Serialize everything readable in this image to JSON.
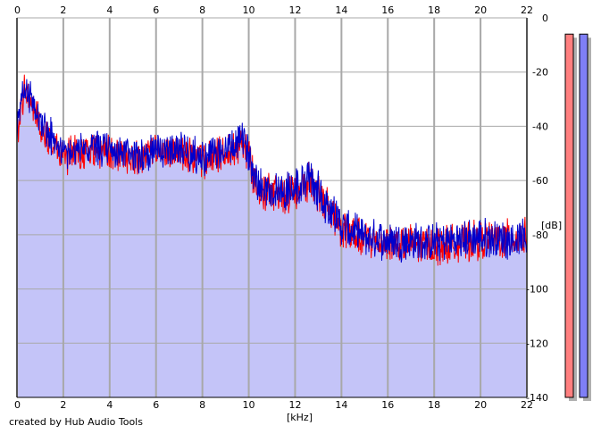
{
  "app": {
    "credit": "created by Hub Audio Tools"
  },
  "colors": {
    "background": "#ffffff",
    "fill": "#c4c4f8",
    "grid": "#a8a8a8",
    "channel_left": "#ff0000",
    "channel_right": "#0000cc",
    "meter_left_fill": "#ff7f7f",
    "meter_right_fill": "#7f7ff7",
    "meter_shadow": "#b0b0b0"
  },
  "chart_data": {
    "type": "line",
    "title": "",
    "xlabel": "[kHz]",
    "ylabel": "[dB]",
    "xlim": [
      0,
      22
    ],
    "ylim": [
      -140,
      0
    ],
    "xticks": [
      "0",
      "2",
      "4",
      "6",
      "8",
      "10",
      "12",
      "14",
      "16",
      "18",
      "20",
      "22"
    ],
    "yticks": [
      "0",
      "-20",
      "-40",
      "-60",
      "-80",
      "-100",
      "-120",
      "-140"
    ],
    "grid": true,
    "x": [
      0.0,
      0.3,
      0.6,
      1.0,
      1.5,
      2.0,
      2.5,
      3.0,
      4.0,
      5.0,
      6.0,
      7.0,
      8.0,
      9.0,
      9.8,
      10.2,
      10.6,
      11.0,
      12.0,
      12.6,
      13.2,
      13.6,
      14.0,
      15.0,
      16.0,
      18.0,
      20.0,
      22.0
    ],
    "envelope": [
      -40,
      -25,
      -28,
      -38,
      -43,
      -48,
      -48,
      -47,
      -48,
      -50,
      -48,
      -48,
      -51,
      -48,
      -44,
      -55,
      -62,
      -63,
      -62,
      -58,
      -66,
      -70,
      -75,
      -79,
      -80,
      -81,
      -80,
      -80
    ],
    "series": [
      {
        "id": "left",
        "color": "#ff0000",
        "values": [
          -44,
          -27,
          -30,
          -40,
          -45,
          -52,
          -50,
          -49,
          -50,
          -52,
          -50,
          -49,
          -53,
          -50,
          -46,
          -57,
          -64,
          -65,
          -64,
          -60,
          -68,
          -72,
          -78,
          -82,
          -83,
          -84,
          -82,
          -81
        ]
      },
      {
        "id": "right",
        "color": "#0000cc",
        "values": [
          -42,
          -26,
          -29,
          -39,
          -44,
          -50,
          -49,
          -48,
          -49,
          -51,
          -49,
          -48,
          -52,
          -49,
          -45,
          -56,
          -63,
          -64,
          -63,
          -59,
          -67,
          -71,
          -77,
          -81,
          -82,
          -83,
          -81,
          -82
        ]
      }
    ],
    "meters": [
      {
        "id": "left",
        "level_db": -6
      },
      {
        "id": "right",
        "level_db": -6
      }
    ]
  }
}
